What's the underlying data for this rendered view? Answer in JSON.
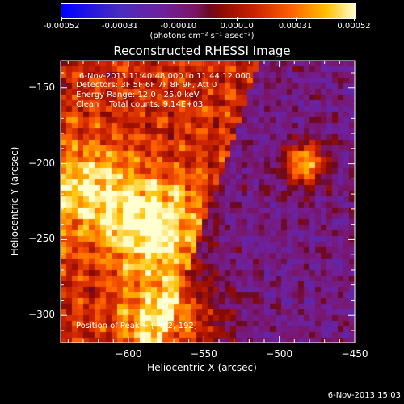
{
  "colorbar": {
    "tick_labels": [
      "-0.00052",
      "-0.00031",
      "-0.00010",
      "0.00010",
      "0.00031",
      "0.00052"
    ],
    "units": "(photons cm⁻² s⁻¹ asec⁻²)"
  },
  "title": "Reconstructed RHESSI Image",
  "annotations": {
    "time_range": "6-Nov-2013 11:40:48.000 to 11:44:12.000",
    "detectors": "Detectors: 3F 5F 6F 7F 8F 9F, Att 0",
    "energy": "Energy Range: 12.0 - 25.0 keV",
    "clean": "Clean    Total counts: 9.14E+03",
    "peak": "Position of Peak = [-482,-192]"
  },
  "footer_timestamp": "6-Nov-2013 15:03",
  "chart_data": {
    "type": "heatmap",
    "title": "Reconstructed RHESSI Image",
    "xlabel": "Heliocentric X (arcsec)",
    "ylabel": "Heliocentric Y (arcsec)",
    "xlim": [
      -645,
      -450
    ],
    "ylim": [
      -318,
      -132
    ],
    "x_ticks": [
      -600,
      -550,
      -500,
      -450
    ],
    "y_ticks": [
      -150,
      -200,
      -250,
      -300
    ],
    "color_range": [
      -0.00052,
      0.00052
    ],
    "units": "photons cm^-2 s^-1 asec^-2",
    "peak_position": [
      -482,
      -192
    ],
    "bright_regions": [
      {
        "x": -585,
        "y": -240,
        "level": "high"
      },
      {
        "x": -570,
        "y": -305,
        "level": "high"
      },
      {
        "x": -483,
        "y": -200,
        "level": "peak"
      },
      {
        "x": -630,
        "y": -215,
        "level": "medium"
      }
    ],
    "grid": false
  }
}
